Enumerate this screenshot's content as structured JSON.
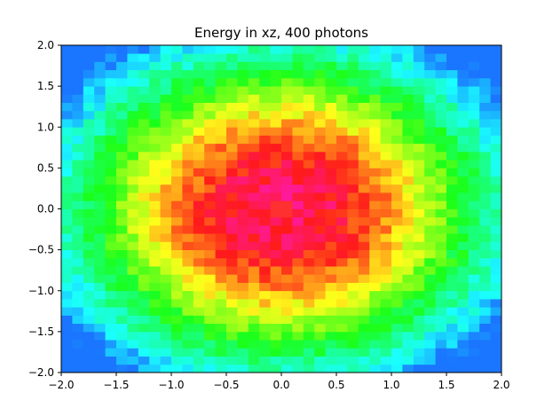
{
  "chart_data": {
    "type": "heatmap",
    "title": "Energy in xz, 400 photons",
    "xlabel": "",
    "ylabel": "",
    "xlim": [
      -2.0,
      2.0
    ],
    "ylim": [
      -2.0,
      2.0
    ],
    "x_ticks": [
      -2.0,
      -1.5,
      -1.0,
      -0.5,
      0.0,
      0.5,
      1.0,
      1.5,
      2.0
    ],
    "y_ticks": [
      -2.0,
      -1.5,
      -1.0,
      -0.5,
      0.0,
      0.5,
      1.0,
      1.5,
      2.0
    ],
    "x_tick_labels": [
      "−2.0",
      "−1.5",
      "−1.0",
      "−0.5",
      "0.0",
      "0.5",
      "1.0",
      "1.5",
      "2.0"
    ],
    "y_tick_labels": [
      "−2.0",
      "−1.5",
      "−1.0",
      "−0.5",
      "0.0",
      "0.5",
      "1.0",
      "1.5",
      "2.0"
    ],
    "grid": false,
    "colormap": "hsv",
    "bins": {
      "nx": 40,
      "ny": 40
    },
    "distribution": {
      "model": "radial",
      "center": [
        0.0,
        0.0
      ],
      "core_value": 0.88,
      "peak_cell": [
        0.0,
        0.0
      ],
      "peak_value": 1.0,
      "ring_radius_blue": 0.75,
      "outer_value": 0.33,
      "corner_value": 0.15
    },
    "colors": {
      "peak": "#ff3030",
      "core": "#ff44ff",
      "inner": "#b040ff",
      "ring": "#2040ff",
      "mid": "#00ffff",
      "outer": "#00ff40",
      "edge": "#ffff30"
    }
  }
}
